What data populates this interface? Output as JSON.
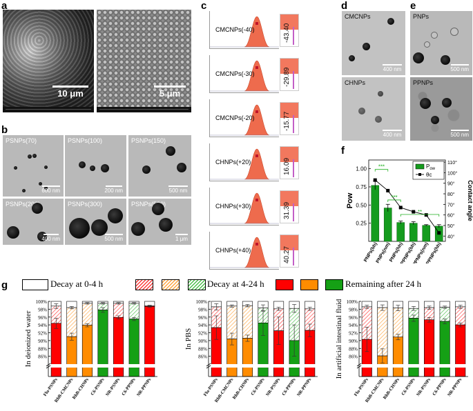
{
  "panels": {
    "a": {
      "letter": "a",
      "scale_left": "10 μm",
      "scale_right": "5 μm"
    },
    "b": {
      "letter": "b",
      "tiles": [
        {
          "label": "PSNPs(70)",
          "scale": "600 nm"
        },
        {
          "label": "PSNPs(100)",
          "scale": "200 nm"
        },
        {
          "label": "PSNPs(150)",
          "scale": "500 nm"
        },
        {
          "label": "PSNPs(200)",
          "scale": "400 nm"
        },
        {
          "label": "PSNPs(300)",
          "scale": "500 nm"
        },
        {
          "label": "PSNPs(500)",
          "scale": "1 μm"
        }
      ]
    },
    "c": {
      "letter": "c",
      "rows": [
        {
          "label": "CMCNPs(-40)",
          "value": "-43.40"
        },
        {
          "label": "CMCNPs(-30)",
          "value": "-29.89"
        },
        {
          "label": "CMCNPs(-20)",
          "value": "-15.77"
        },
        {
          "label": "CHNPs(+20)",
          "value": "16.09"
        },
        {
          "label": "CHNPs(+30)",
          "value": "31.39"
        },
        {
          "label": "CHNPs(+40)",
          "value": "40.27"
        }
      ]
    },
    "d": {
      "letter": "d",
      "tiles": [
        {
          "label": "CMCNPs",
          "scale": "400 nm"
        },
        {
          "label": "CHNPs",
          "scale": "400 nm"
        }
      ]
    },
    "e": {
      "letter": "e",
      "tiles": [
        {
          "label": "PNPs",
          "scale": "500 nm"
        },
        {
          "label": "PPNPs",
          "scale": "500 nm"
        }
      ]
    },
    "f": {
      "letter": "f"
    },
    "g": {
      "letter": "g"
    }
  },
  "chart_data": [
    {
      "panel": "f",
      "type": "bar",
      "categories": [
        "PNPs(bh)",
        "PNPs(nm)",
        "PNPs(hh)",
        "PPNPs(bh)",
        "PPNPs(nm)",
        "PPNPs(hh)"
      ],
      "series": [
        {
          "name": "P_ow",
          "type": "bar",
          "axis": "left",
          "values": [
            0.77,
            0.46,
            0.26,
            0.25,
            0.22,
            0.21
          ],
          "errors": [
            0.06,
            0.05,
            0.02,
            0.02,
            0.01,
            0.02
          ],
          "color": "#159c1e"
        },
        {
          "name": "θc",
          "type": "line",
          "axis": "right",
          "values": [
            93,
            83,
            67,
            63,
            60,
            43
          ],
          "color": "#000000"
        }
      ],
      "ylabel": "Pow",
      "y2label": "Contact angle",
      "yticks": [
        "0.25",
        "0.50",
        "0.75",
        "1.00"
      ],
      "ylim": [
        0,
        1.12
      ],
      "y2ticks": [
        "40°",
        "50°",
        "60°",
        "70°",
        "80°",
        "90°",
        "100°",
        "110°"
      ],
      "y2lim": [
        35,
        112
      ],
      "significance": [
        {
          "from": 0,
          "to": 1,
          "label": "***",
          "level": 0.99
        },
        {
          "from": 1,
          "to": 2,
          "label": "***",
          "level": 0.57
        },
        {
          "from": 2,
          "to": 5,
          "label": "**",
          "level": 0.37
        }
      ],
      "legend": {
        "position": "top-right"
      }
    },
    {
      "panel": "g",
      "type": "bar",
      "stacked": true,
      "legend_labels": {
        "decay_0_4": "Decay at 0-4 h",
        "decay_4_24": "Decay at 4-24 h",
        "remaining": "Remaining after 24 h"
      },
      "yticks": [
        "86%",
        "88%",
        "90%",
        "92%",
        "94%",
        "96%",
        "98%",
        "100%"
      ],
      "ylim": [
        84,
        100
      ],
      "axis_break": true,
      "subplots": [
        {
          "ylabel": "In deionized water",
          "categories": [
            "Flu-PSNPs",
            "RhB-CMCNPs",
            "RhB-CHNPs",
            "C6-PSNPs",
            "NR-PSNPs",
            "C6-PPNPs",
            "NR-PPNPs"
          ],
          "colors": [
            "#ff0000",
            "#ff8c00",
            "#ff8c00",
            "#15a015",
            "#ff0000",
            "#15a015",
            "#ff0000"
          ],
          "remaining": [
            94.4,
            91.0,
            93.9,
            97.8,
            95.9,
            95.5,
            98.7
          ],
          "remaining_err": [
            1.3,
            0.9,
            0.4,
            0.6,
            0.4,
            0.4,
            0.2
          ],
          "after_4h": [
            98.8,
            98.4,
            99.5,
            99.5,
            99.5,
            99.5,
            98.9
          ],
          "after_4h_err": [
            0.6,
            0.3,
            0.2,
            0.2,
            0.2,
            0.2,
            0.1
          ]
        },
        {
          "ylabel": "In PBS",
          "categories": [
            "Flu-PSNPs",
            "RhB-CMCNPs",
            "RhB-CHNPs",
            "C6-PSNPs",
            "NR-PSNPs",
            "C6-PPNPs",
            "NR-PPNPs"
          ],
          "colors": [
            "#ff0000",
            "#ff8c00",
            "#ff8c00",
            "#15a015",
            "#ff0000",
            "#15a015",
            "#ff0000"
          ],
          "remaining": [
            93.3,
            90.4,
            90.6,
            94.5,
            92.5,
            90.0,
            92.6
          ],
          "remaining_err": [
            3.0,
            1.5,
            0.8,
            3.2,
            3.5,
            4.0,
            1.6
          ],
          "after_4h": [
            98.6,
            98.8,
            98.9,
            98.3,
            98.1,
            98.2,
            98.1
          ],
          "after_4h_err": [
            0.8,
            0.3,
            0.3,
            0.8,
            0.4,
            1.0,
            0.4
          ]
        },
        {
          "ylabel": "In artificial intestinal fluid",
          "categories": [
            "Flu-PSNPs",
            "RhB-CMCNPs",
            "RhB-CHNPs",
            "C6-PSNPs",
            "NR-PSNPs",
            "C6-PPNPs",
            "NR-PPNPs"
          ],
          "colors": [
            "#ff0000",
            "#ff8c00",
            "#ff8c00",
            "#15a015",
            "#ff0000",
            "#15a015",
            "#ff0000"
          ],
          "remaining": [
            90.3,
            86.1,
            90.9,
            95.7,
            95.3,
            94.9,
            94.0
          ],
          "remaining_err": [
            3.1,
            1.8,
            0.7,
            0.8,
            0.6,
            0.6,
            0.5
          ],
          "after_4h": [
            98.6,
            98.4,
            98.3,
            98.2,
            98.4,
            98.5,
            98.6
          ],
          "after_4h_err": [
            0.4,
            0.7,
            0.7,
            0.5,
            0.4,
            0.3,
            0.4
          ]
        }
      ]
    }
  ]
}
